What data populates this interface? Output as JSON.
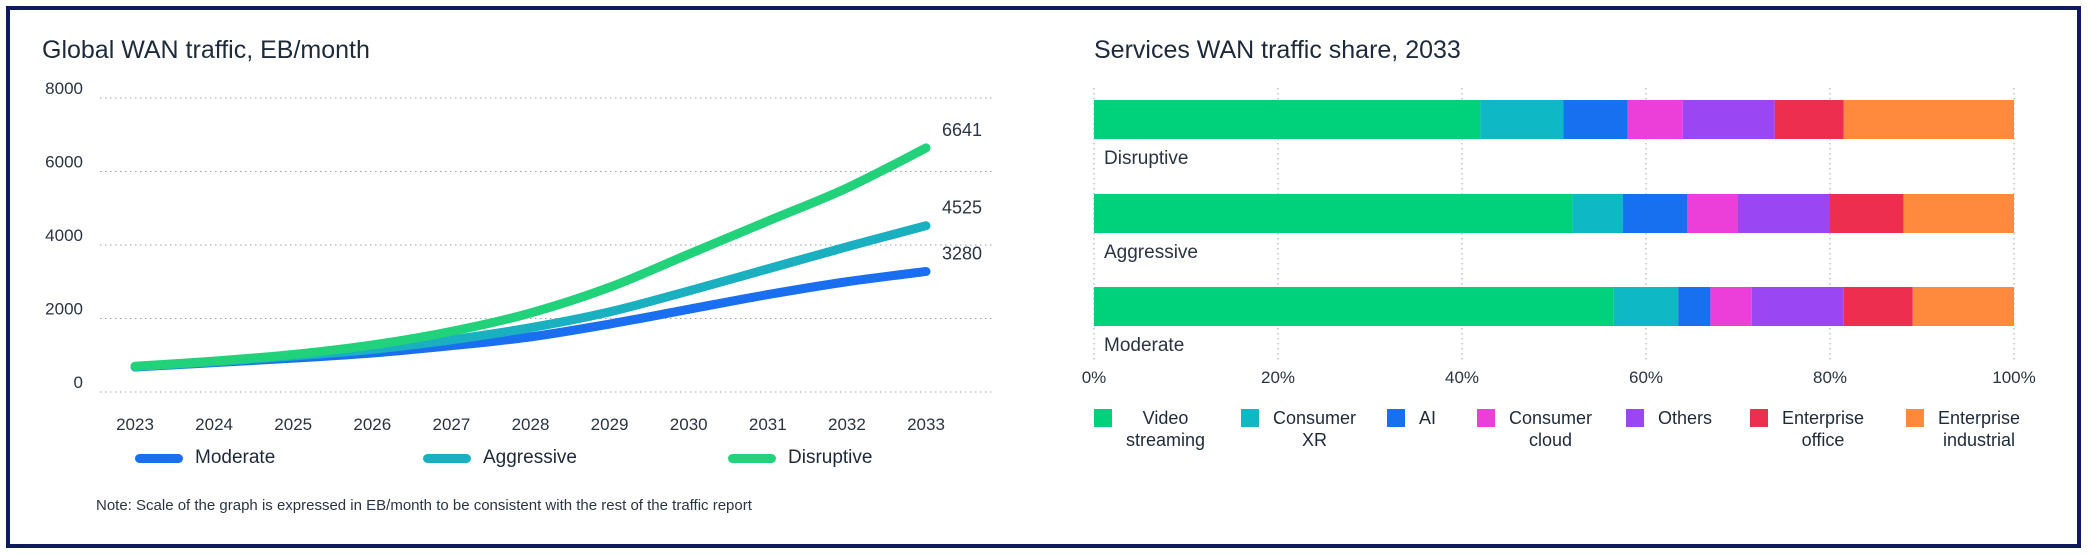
{
  "colors": {
    "moderate": "#1a6ef0",
    "aggressive": "#1ab0c0",
    "disruptive": "#22d27a",
    "video_streaming": "#00d17b",
    "consumer_xr": "#0eb8c4",
    "ai": "#1770f0",
    "consumer_cloud": "#ec3ed8",
    "others": "#9a46f2",
    "enterprise_office": "#ee2e4e",
    "enterprise_industrial": "#ff8a3d",
    "frame": "#0e1a5c"
  },
  "chart_data": [
    {
      "type": "line",
      "title": "Global WAN traffic, EB/month",
      "xlabel": "",
      "ylabel": "",
      "x": [
        "2023",
        "2024",
        "2025",
        "2026",
        "2027",
        "2028",
        "2029",
        "2030",
        "2031",
        "2032",
        "2033"
      ],
      "ylim": [
        0,
        8000
      ],
      "yticks": [
        0,
        2000,
        4000,
        6000,
        8000
      ],
      "grid": true,
      "series": [
        {
          "name": "Moderate",
          "color_key": "moderate",
          "values": [
            680,
            800,
            920,
            1060,
            1260,
            1500,
            1850,
            2250,
            2650,
            3000,
            3280
          ],
          "end_label": "3280"
        },
        {
          "name": "Aggressive",
          "color_key": "aggressive",
          "values": [
            690,
            820,
            980,
            1160,
            1420,
            1750,
            2180,
            2750,
            3350,
            3950,
            4525
          ],
          "end_label": "4525"
        },
        {
          "name": "Disruptive",
          "color_key": "disruptive",
          "values": [
            700,
            840,
            1020,
            1280,
            1650,
            2150,
            2850,
            3750,
            4650,
            5550,
            6641
          ],
          "end_label": "6641"
        }
      ],
      "legend_position": "bottom",
      "note": "Note: Scale of the graph is expressed in EB/month to be consistent with the rest of the traffic report"
    },
    {
      "type": "bar",
      "orientation": "horizontal",
      "stacked": true,
      "title": "Services WAN traffic share, 2033",
      "categories": [
        "Disruptive",
        "Aggressive",
        "Moderate"
      ],
      "xlim": [
        0,
        100
      ],
      "xticks": [
        "0%",
        "20%",
        "40%",
        "60%",
        "80%",
        "100%"
      ],
      "series": [
        {
          "name": "Video streaming",
          "label_lines": [
            "Video",
            "streaming"
          ],
          "color_key": "video_streaming",
          "values": [
            42,
            52,
            56.5
          ]
        },
        {
          "name": "Consumer XR",
          "label_lines": [
            "Consumer",
            "XR"
          ],
          "color_key": "consumer_xr",
          "values": [
            9,
            5.5,
            7
          ]
        },
        {
          "name": "AI",
          "label_lines": [
            "AI"
          ],
          "color_key": "ai",
          "values": [
            7,
            7,
            3.5
          ]
        },
        {
          "name": "Consumer cloud",
          "label_lines": [
            "Consumer",
            "cloud"
          ],
          "color_key": "consumer_cloud",
          "values": [
            6,
            5.5,
            4.5
          ]
        },
        {
          "name": "Others",
          "label_lines": [
            "Others"
          ],
          "color_key": "others",
          "values": [
            10,
            10,
            10
          ]
        },
        {
          "name": "Enterprise office",
          "label_lines": [
            "Enterprise",
            "office"
          ],
          "color_key": "enterprise_office",
          "values": [
            7.5,
            8,
            7.5
          ]
        },
        {
          "name": "Enterprise industrial",
          "label_lines": [
            "Enterprise",
            "industrial"
          ],
          "color_key": "enterprise_industrial",
          "values": [
            18.5,
            12,
            11
          ]
        }
      ],
      "legend_position": "bottom"
    }
  ]
}
